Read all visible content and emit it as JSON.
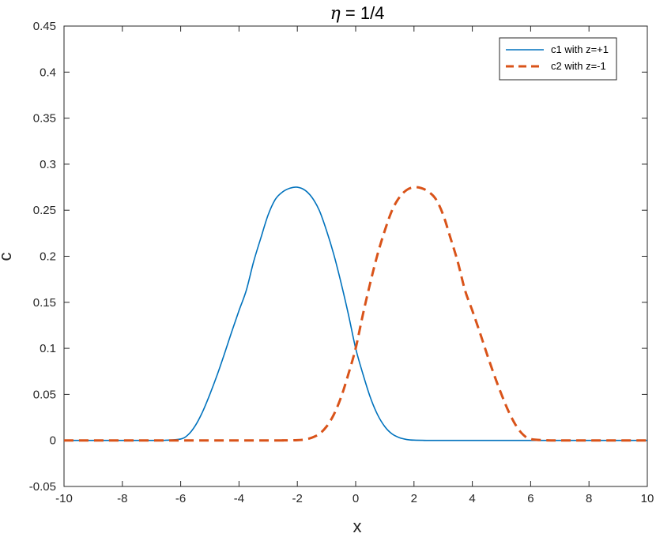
{
  "chart_data": {
    "type": "line",
    "title_symbol": "η",
    "title_rest": " = 1/4",
    "xlabel": "x",
    "ylabel": "c",
    "xlim": [
      -10,
      10
    ],
    "ylim": [
      -0.05,
      0.45
    ],
    "xticks": [
      -10,
      -8,
      -6,
      -4,
      -2,
      0,
      2,
      4,
      6,
      8,
      10
    ],
    "xtick_labels": [
      "-10",
      "-8",
      "-6",
      "-4",
      "-2",
      "0",
      "2",
      "4",
      "6",
      "8",
      "10"
    ],
    "yticks": [
      -0.05,
      0,
      0.05,
      0.1,
      0.15,
      0.2,
      0.25,
      0.3,
      0.35,
      0.4,
      0.45
    ],
    "ytick_labels": [
      "-0.05",
      "0",
      "0.05",
      "0.1",
      "0.15",
      "0.2",
      "0.25",
      "0.3",
      "0.35",
      "0.4",
      "0.45"
    ],
    "grid": false,
    "legend_position": "top-right",
    "series": [
      {
        "name": "c1 with z=+1",
        "color": "#0072BD",
        "style": "solid",
        "x": [
          -10,
          -7,
          -6.5,
          -6,
          -5.75,
          -5.5,
          -5.25,
          -5,
          -4.75,
          -4.5,
          -4.25,
          -4,
          -3.75,
          -3.5,
          -3.25,
          -3,
          -2.75,
          -2.5,
          -2.25,
          -2,
          -1.75,
          -1.5,
          -1.25,
          -1,
          -0.75,
          -0.5,
          -0.25,
          0,
          0.25,
          0.5,
          0.75,
          1,
          1.25,
          1.5,
          1.75,
          2,
          2.5,
          3,
          10
        ],
        "y": [
          0,
          0,
          0.0002,
          0.0015,
          0.006,
          0.016,
          0.031,
          0.05,
          0.071,
          0.094,
          0.118,
          0.141,
          0.163,
          0.194,
          0.22,
          0.245,
          0.262,
          0.27,
          0.274,
          0.275,
          0.272,
          0.264,
          0.25,
          0.228,
          0.202,
          0.171,
          0.137,
          0.1,
          0.072,
          0.047,
          0.028,
          0.015,
          0.007,
          0.003,
          0.001,
          0.0003,
          5e-05,
          0,
          0
        ]
      },
      {
        "name": "c2 with z=-1",
        "color": "#D95319",
        "style": "dashed",
        "x": [
          -10,
          -3,
          -2.5,
          -2,
          -1.75,
          -1.5,
          -1.25,
          -1,
          -0.75,
          -0.5,
          -0.25,
          0,
          0.25,
          0.5,
          0.75,
          1,
          1.25,
          1.5,
          1.75,
          2,
          2.25,
          2.5,
          2.75,
          3,
          3.25,
          3.5,
          3.75,
          4,
          4.25,
          4.5,
          4.75,
          5,
          5.25,
          5.5,
          5.75,
          6,
          6.5,
          7,
          10
        ],
        "y": [
          0,
          0,
          5e-05,
          0.0003,
          0.001,
          0.003,
          0.007,
          0.015,
          0.028,
          0.047,
          0.072,
          0.1,
          0.137,
          0.171,
          0.202,
          0.228,
          0.25,
          0.264,
          0.272,
          0.275,
          0.274,
          0.27,
          0.262,
          0.245,
          0.22,
          0.194,
          0.163,
          0.141,
          0.118,
          0.094,
          0.071,
          0.05,
          0.031,
          0.016,
          0.006,
          0.0015,
          0.0002,
          0,
          0
        ]
      }
    ]
  }
}
